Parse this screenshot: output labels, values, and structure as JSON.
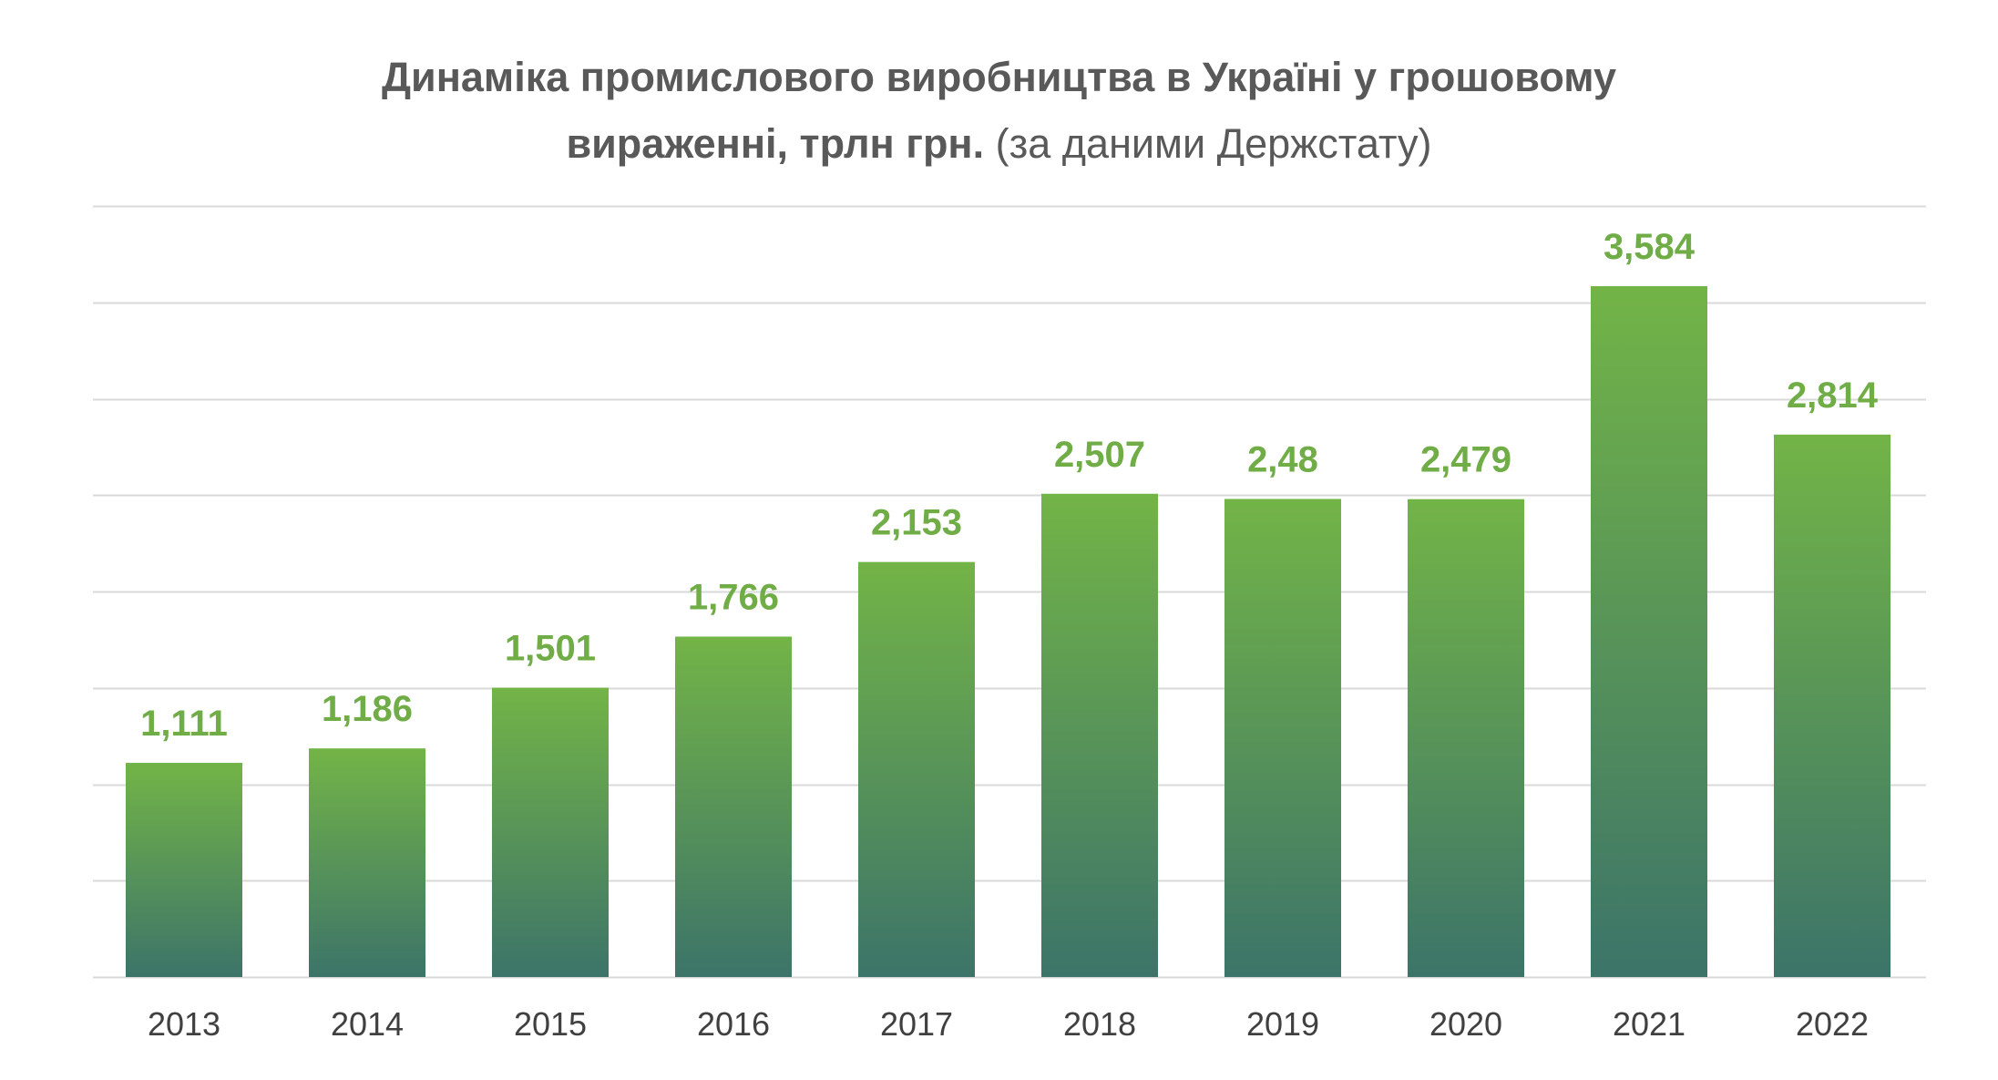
{
  "colors": {
    "bar_top": "#73B447",
    "bar_bottom": "#3C7469",
    "label": "#70AD47",
    "grid": "#D9D9D9",
    "title": "#595959",
    "tick": "#404040"
  },
  "chart_data": {
    "type": "bar",
    "title_line1": "Динаміка промислового виробництва в Україні у грошовому",
    "title_line2_bold": "вираженні, трлн грн.",
    "title_line2_normal": "(за даними Держстату)",
    "xlabel": "",
    "ylabel": "",
    "categories": [
      "2013",
      "2014",
      "2015",
      "2016",
      "2017",
      "2018",
      "2019",
      "2020",
      "2021",
      "2022"
    ],
    "values": [
      1.111,
      1.186,
      1.501,
      1.766,
      2.153,
      2.507,
      2.48,
      2.479,
      3.584,
      2.814
    ],
    "value_labels": [
      "1,111",
      "1,186",
      "1,501",
      "1,766",
      "2,153",
      "2,507",
      "2,48",
      "2,479",
      "3,584",
      "2,814"
    ],
    "ylim": [
      0,
      4
    ],
    "y_grid_step": 0.5,
    "grid": true,
    "legend": "none"
  }
}
